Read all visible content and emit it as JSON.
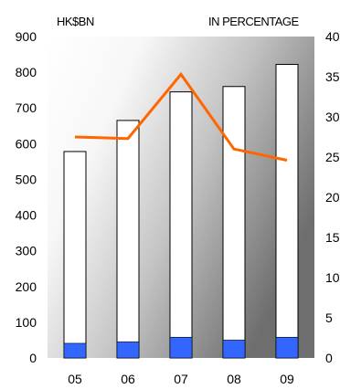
{
  "chart_data": {
    "type": "bar",
    "categories": [
      "05",
      "06",
      "07",
      "08",
      "09"
    ],
    "left_axis_unit": "HK$BN",
    "right_axis_unit": "IN PERCENTAGE",
    "left_ylim": [
      0,
      900
    ],
    "right_ylim": [
      0,
      40
    ],
    "left_ticks": [
      "0",
      "100",
      "200",
      "300",
      "400",
      "500",
      "600",
      "700",
      "800",
      "900"
    ],
    "right_ticks": [
      "0",
      "5",
      "10",
      "15",
      "20",
      "25",
      "30",
      "35",
      "40"
    ],
    "series": [
      {
        "type": "bar",
        "axis": "left",
        "values": [
          578,
          665,
          745,
          760,
          822
        ]
      },
      {
        "type": "bar",
        "axis": "left",
        "values": [
          41,
          45,
          58,
          50,
          58
        ]
      },
      {
        "type": "line",
        "axis": "right",
        "values": [
          27.5,
          27.3,
          35.3,
          26.0,
          24.6
        ]
      }
    ],
    "grid": false,
    "legend": "none",
    "colors": {
      "total_bar_fill": "#ffffff",
      "total_bar_stroke": "#000000",
      "sub_bar_fill": "#3366ff",
      "line": "#ff6600",
      "plot_gradient_light": "#ffffff",
      "plot_gradient_dark": "#6e6e6e"
    }
  }
}
